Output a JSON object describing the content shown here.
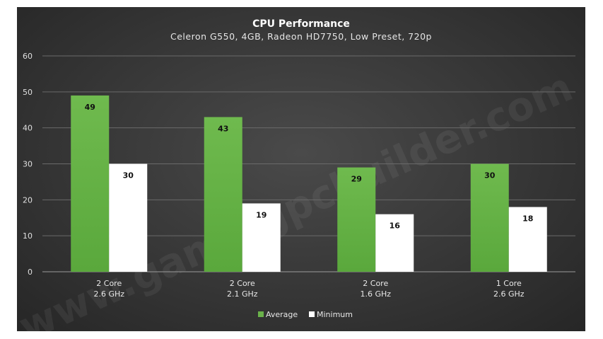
{
  "watermark": "www.gamingpcbuilder.com",
  "chart_data": {
    "type": "bar",
    "title": "CPU Performance",
    "subtitle": "Celeron G550, 4GB, Radeon HD7750, Low Preset, 720p",
    "categories": [
      [
        "2 Core",
        "2.6 GHz"
      ],
      [
        "2 Core",
        "2.1 GHz"
      ],
      [
        "2 Core",
        "1.6 GHz"
      ],
      [
        "1 Core",
        "2.6 GHz"
      ]
    ],
    "series": [
      {
        "name": "Average",
        "color": "#6ab24a",
        "values": [
          49,
          43,
          29,
          30
        ]
      },
      {
        "name": "Minimum",
        "color": "#ffffff",
        "values": [
          30,
          19,
          16,
          18
        ]
      }
    ],
    "ylim": [
      0,
      60
    ],
    "yticks": [
      0,
      10,
      20,
      30,
      40,
      50,
      60
    ],
    "grid": true,
    "legend": "bottom",
    "data_labels": true
  }
}
